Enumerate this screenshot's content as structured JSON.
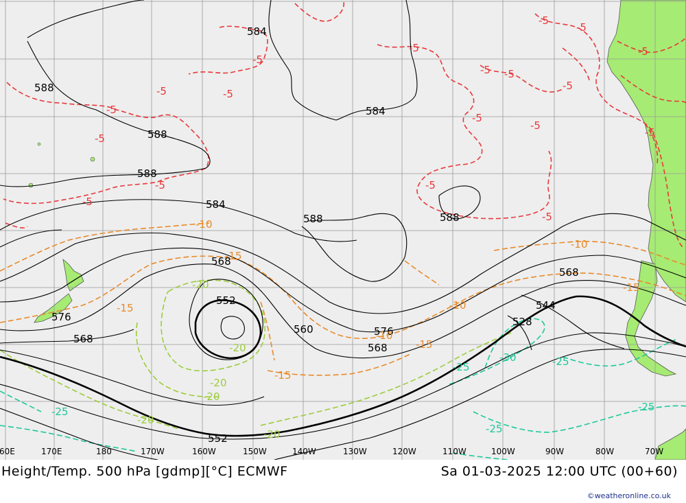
{
  "map": {
    "title": "Height/Temp. 500 hPa [gdmp][°C] ECMWF",
    "valid_time": "Sa 01-03-2025 12:00 UTC (00+60)",
    "credit": "©weatheronline.co.uk",
    "lon_labels": [
      "60E",
      "170E",
      "180",
      "170W",
      "160W",
      "150W",
      "140W",
      "130W",
      "120W",
      "110W",
      "100W",
      "90W",
      "80W",
      "70W"
    ],
    "height_labels": [
      "584",
      "588",
      "588",
      "588",
      "584",
      "584",
      "588",
      "588",
      "568",
      "552",
      "576",
      "568",
      "560",
      "576",
      "568",
      "568",
      "544",
      "528",
      "552"
    ],
    "temp_labels": [
      "-5",
      "-5",
      "-5",
      "-5",
      "-5",
      "-5",
      "-5",
      "-5",
      "-5",
      "-5",
      "-5",
      "-5",
      "-5",
      "-5",
      "-5",
      "-5",
      "-5",
      "-5",
      "-5",
      "-10",
      "-10",
      "-10",
      "-10",
      "-15",
      "-15",
      "-15",
      "-15",
      "-15",
      "-20",
      "-20",
      "-20",
      "-20",
      "-20",
      "-20",
      "-25",
      "-25",
      "-25",
      "-25",
      "-25",
      "-30"
    ],
    "colors": {
      "height": "#000000",
      "temp_minus5": "#e8383b",
      "temp_minus10": "#e88a2a",
      "temp_minus15": "#e88a2a",
      "temp_minus20": "#9ccc3a",
      "temp_minus25": "#1ec89a",
      "land": "#a6eb73",
      "sea": "#eeeeee",
      "grid": "#9a9a9a"
    }
  }
}
